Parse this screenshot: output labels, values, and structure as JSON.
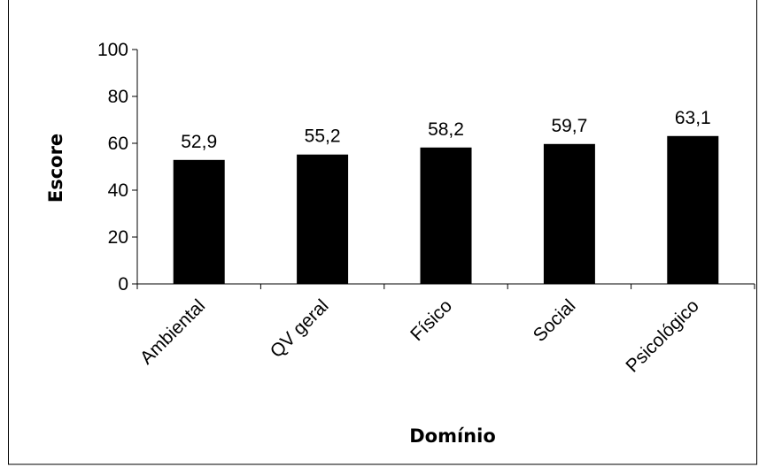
{
  "chart_data": {
    "type": "bar",
    "title": "",
    "xlabel": "Domínio",
    "ylabel": "Escore",
    "categories": [
      "Ambiental",
      "QV geral",
      "Físico",
      "Social",
      "Psicológico"
    ],
    "values": [
      52.9,
      55.2,
      58.2,
      59.7,
      63.1
    ],
    "value_labels": [
      "52,9",
      "55,2",
      "58,2",
      "59,7",
      "63,1"
    ],
    "ylim": [
      0,
      100
    ],
    "yticks": [
      0,
      20,
      40,
      60,
      80,
      100
    ],
    "grid": false,
    "legend": "none",
    "bar_color": "#000000"
  }
}
